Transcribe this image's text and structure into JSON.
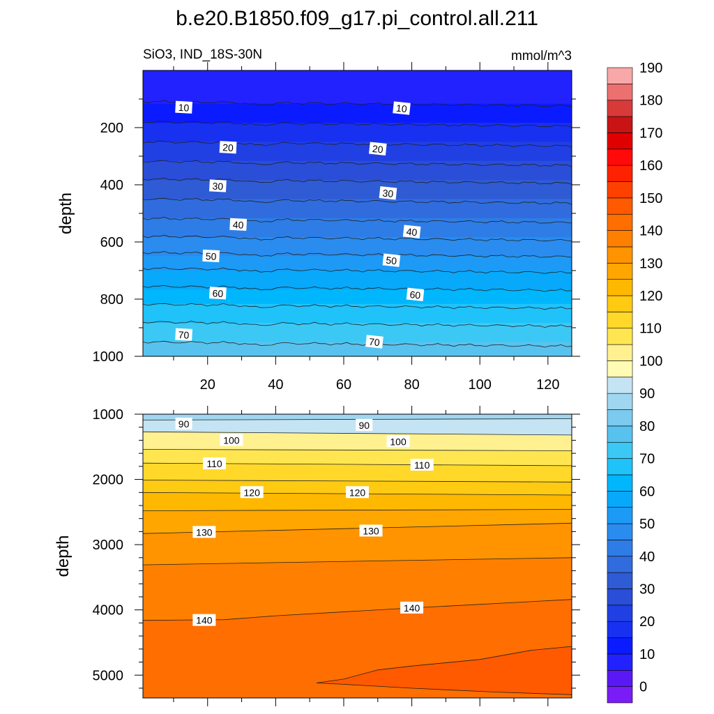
{
  "title": "b.e20.B1850.f09_g17.pi_control.all.211",
  "subtitle_left": "SiO3, IND_18S-30N",
  "subtitle_right": "mmol/m^3",
  "colors": {
    "levels": [
      "#7a1cf5",
      "#5a18f5",
      "#2222ff",
      "#0a1cff",
      "#1830f0",
      "#2040e4",
      "#2a4ed8",
      "#2f5bd4",
      "#306cde",
      "#2e7de6",
      "#2a8cee",
      "#1d9af6",
      "#08a8fa",
      "#00b6fc",
      "#20c2fa",
      "#3cc8f4",
      "#58c2ee",
      "#7ccaee",
      "#a0d6f0",
      "#c4e4f4",
      "#fffbb4",
      "#fff190",
      "#ffe650",
      "#ffd82a",
      "#ffca12",
      "#ffb800",
      "#ffa600",
      "#ff9300",
      "#ff8000",
      "#ff6e00",
      "#ff5a00",
      "#ff4100",
      "#ff2200",
      "#ff0a0a",
      "#e00000",
      "#c81414",
      "#d83a3a",
      "#ec7070",
      "#f8a8a8"
    ]
  },
  "chart_data": [
    {
      "type": "contour",
      "panel": "upper",
      "xlabel": "",
      "ylabel": "depth",
      "xlim": [
        1,
        127
      ],
      "ylim": [
        1000,
        0
      ],
      "x_ticks": [
        20,
        40,
        60,
        80,
        100,
        120
      ],
      "x_tick_labels": [
        "20",
        "40",
        "60",
        "80",
        "100",
        "120"
      ],
      "y_ticks": [
        200,
        400,
        600,
        800,
        1000
      ],
      "y_tick_labels": [
        "200",
        "400",
        "600",
        "800",
        "1000"
      ],
      "profile": [
        [
          0,
          5
        ],
        [
          50,
          6
        ],
        [
          100,
          9
        ],
        [
          150,
          12
        ],
        [
          200,
          16
        ],
        [
          300,
          23
        ],
        [
          400,
          31
        ],
        [
          500,
          38
        ],
        [
          600,
          46
        ],
        [
          700,
          55
        ],
        [
          800,
          63
        ],
        [
          900,
          71
        ],
        [
          1000,
          78
        ]
      ],
      "contour_labels": [
        {
          "text": "10",
          "x": 13,
          "depth": 130
        },
        {
          "text": "10",
          "x": 77,
          "depth": 133
        },
        {
          "text": "20",
          "x": 26,
          "depth": 270
        },
        {
          "text": "20",
          "x": 70,
          "depth": 275
        },
        {
          "text": "30",
          "x": 23,
          "depth": 405
        },
        {
          "text": "30",
          "x": 73,
          "depth": 430
        },
        {
          "text": "40",
          "x": 29,
          "depth": 540
        },
        {
          "text": "40",
          "x": 80,
          "depth": 565
        },
        {
          "text": "50",
          "x": 21,
          "depth": 650
        },
        {
          "text": "50",
          "x": 74,
          "depth": 665
        },
        {
          "text": "60",
          "x": 23,
          "depth": 780
        },
        {
          "text": "60",
          "x": 81,
          "depth": 785
        },
        {
          "text": "70",
          "x": 13,
          "depth": 925
        },
        {
          "text": "70",
          "x": 69,
          "depth": 950
        }
      ]
    },
    {
      "type": "contour",
      "panel": "lower",
      "xlabel": "",
      "ylabel": "depth",
      "xlim": [
        1,
        127
      ],
      "ylim": [
        5350,
        1000
      ],
      "y_ticks": [
        1000,
        2000,
        3000,
        4000,
        5000
      ],
      "y_tick_labels": [
        "1000",
        "2000",
        "3000",
        "4000",
        "5000"
      ],
      "contours": [
        {
          "level": 90,
          "points": [
            [
              1,
              1090
            ],
            [
              127,
              1070
            ]
          ]
        },
        {
          "level": 100,
          "points": [
            [
              1,
              1270
            ],
            [
              127,
              1320
            ]
          ]
        },
        {
          "level": 105,
          "points": [
            [
              1,
              1540
            ],
            [
              127,
              1560
            ]
          ]
        },
        {
          "level": 110,
          "points": [
            [
              1,
              1750
            ],
            [
              127,
              1790
            ]
          ]
        },
        {
          "level": 115,
          "points": [
            [
              1,
              2010
            ],
            [
              127,
              2040
            ]
          ]
        },
        {
          "level": 120,
          "points": [
            [
              1,
              2200
            ],
            [
              127,
              2240
            ]
          ]
        },
        {
          "level": 125,
          "points": [
            [
              1,
              2480
            ],
            [
              127,
              2460
            ]
          ]
        },
        {
          "level": 130,
          "points": [
            [
              1,
              2830
            ],
            [
              127,
              2670
            ]
          ]
        },
        {
          "level": 135,
          "points": [
            [
              1,
              3310
            ],
            [
              127,
              3200
            ]
          ]
        },
        {
          "level": 140,
          "points": [
            [
              1,
              4160
            ],
            [
              25,
              4150
            ],
            [
              40,
              4090
            ],
            [
              80,
              3970
            ],
            [
              127,
              3840
            ]
          ]
        },
        {
          "level": 145,
          "points": [
            [
              52,
              5120
            ],
            [
              60,
              5060
            ],
            [
              70,
              4920
            ],
            [
              80,
              4860
            ],
            [
              100,
              4760
            ],
            [
              115,
              4620
            ],
            [
              127,
              4560
            ],
            [
              127,
              5300
            ],
            [
              105,
              5260
            ],
            [
              80,
              5200
            ],
            [
              60,
              5140
            ],
            [
              52,
              5120
            ]
          ]
        }
      ],
      "contour_labels": [
        {
          "text": "90",
          "x": 13,
          "depth": 1150
        },
        {
          "text": "90",
          "x": 66,
          "depth": 1170
        },
        {
          "text": "100",
          "x": 27,
          "depth": 1400
        },
        {
          "text": "100",
          "x": 76,
          "depth": 1420
        },
        {
          "text": "110",
          "x": 22,
          "depth": 1760
        },
        {
          "text": "110",
          "x": 83,
          "depth": 1780
        },
        {
          "text": "120",
          "x": 33,
          "depth": 2200
        },
        {
          "text": "120",
          "x": 64,
          "depth": 2200
        },
        {
          "text": "130",
          "x": 19,
          "depth": 2810
        },
        {
          "text": "130",
          "x": 68,
          "depth": 2790
        },
        {
          "text": "140",
          "x": 19,
          "depth": 4160
        },
        {
          "text": "140",
          "x": 80,
          "depth": 3970
        }
      ]
    }
  ],
  "colorbar": {
    "levels": [
      0,
      5,
      10,
      15,
      20,
      25,
      30,
      35,
      40,
      45,
      50,
      55,
      60,
      65,
      70,
      75,
      80,
      85,
      90,
      95,
      100,
      105,
      110,
      115,
      120,
      125,
      130,
      135,
      140,
      145,
      150,
      155,
      160,
      165,
      170,
      175,
      180,
      185,
      190
    ],
    "labels": [
      "0",
      "10",
      "20",
      "30",
      "40",
      "50",
      "60",
      "70",
      "80",
      "90",
      "100",
      "110",
      "120",
      "130",
      "140",
      "150",
      "160",
      "170",
      "180",
      "190"
    ]
  }
}
